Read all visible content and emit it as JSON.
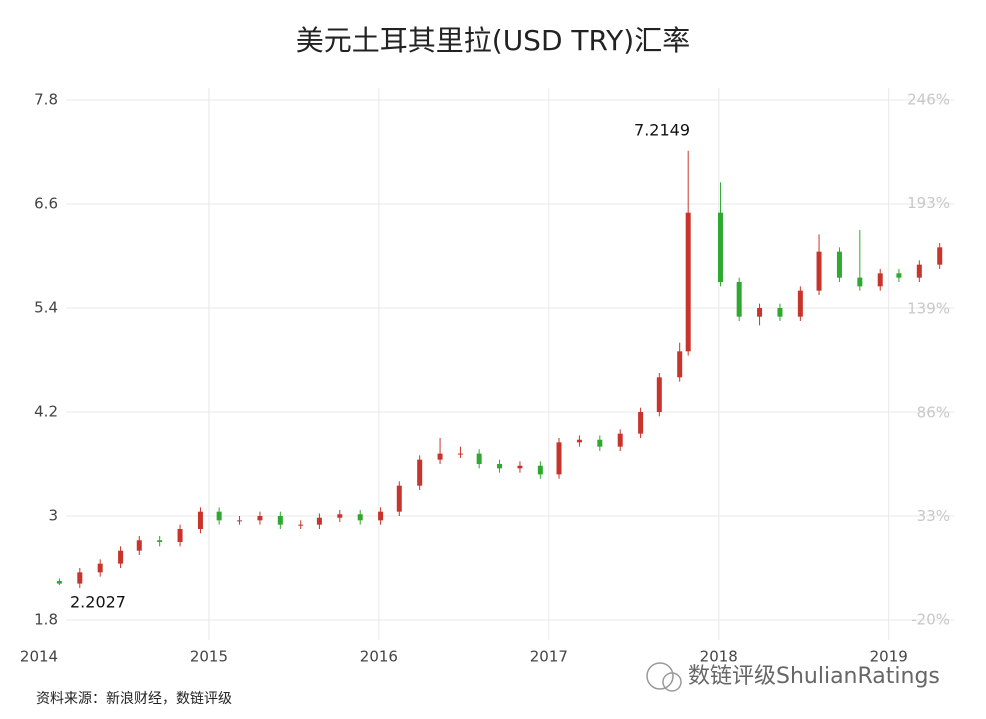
{
  "chart_data": {
    "type": "candlestick",
    "title": "美元土耳其里拉(USD TRY)汇率",
    "source": "资料来源：新浪财经，数链评级",
    "watermark": "数链评级ShulianRatings",
    "annotations": [
      "7.2149",
      "2.2027"
    ],
    "up_color": "#c8342c",
    "down_color": "#2fa82f",
    "x": [
      2014.12,
      2014.24,
      2014.36,
      2014.48,
      2014.59,
      2014.71,
      2014.83,
      2014.95,
      2015.06,
      2015.18,
      2015.3,
      2015.42,
      2015.54,
      2015.65,
      2015.77,
      2015.89,
      2016.01,
      2016.12,
      2016.24,
      2016.36,
      2016.48,
      2016.59,
      2016.71,
      2016.83,
      2016.95,
      2017.06,
      2017.18,
      2017.3,
      2017.42,
      2017.54,
      2017.65,
      2017.77,
      2017.82,
      2018.01,
      2018.12,
      2018.24,
      2018.36,
      2018.48,
      2018.59,
      2018.71,
      2018.83,
      2018.95,
      2019.06,
      2019.18,
      2019.3
    ],
    "open": [
      2.25,
      2.22,
      2.35,
      2.45,
      2.6,
      2.72,
      2.7,
      2.85,
      3.05,
      2.95,
      2.95,
      3.0,
      2.9,
      2.9,
      2.98,
      3.02,
      2.95,
      3.05,
      3.35,
      3.65,
      3.72,
      3.72,
      3.6,
      3.55,
      3.58,
      3.48,
      3.85,
      3.88,
      3.8,
      3.95,
      4.2,
      4.6,
      4.9,
      6.5,
      5.7,
      5.3,
      5.4,
      5.3,
      5.6,
      6.05,
      5.75,
      5.65,
      5.8,
      5.75,
      5.9
    ],
    "high": [
      2.28,
      2.4,
      2.5,
      2.65,
      2.77,
      2.77,
      2.9,
      3.1,
      3.1,
      3.0,
      3.05,
      3.05,
      2.95,
      3.03,
      3.07,
      3.07,
      3.1,
      3.4,
      3.7,
      3.9,
      3.8,
      3.77,
      3.65,
      3.63,
      3.63,
      3.9,
      3.93,
      3.93,
      4.0,
      4.25,
      4.65,
      5.0,
      7.2149,
      6.85,
      5.75,
      5.45,
      5.45,
      5.65,
      6.25,
      6.1,
      6.3,
      5.85,
      5.85,
      5.95,
      6.15
    ],
    "low": [
      2.2027,
      2.17,
      2.3,
      2.4,
      2.55,
      2.65,
      2.65,
      2.8,
      2.9,
      2.9,
      2.9,
      2.85,
      2.85,
      2.85,
      2.93,
      2.9,
      2.9,
      3.0,
      3.3,
      3.6,
      3.67,
      3.55,
      3.5,
      3.5,
      3.43,
      3.43,
      3.8,
      3.75,
      3.75,
      3.9,
      4.15,
      4.55,
      4.85,
      5.65,
      5.25,
      5.2,
      5.25,
      5.25,
      5.55,
      5.7,
      5.6,
      5.6,
      5.7,
      5.7,
      5.85
    ],
    "close": [
      2.22,
      2.35,
      2.45,
      2.6,
      2.72,
      2.7,
      2.85,
      3.05,
      2.95,
      2.95,
      3.0,
      2.9,
      2.9,
      2.98,
      3.02,
      2.95,
      3.05,
      3.35,
      3.65,
      3.72,
      3.72,
      3.6,
      3.55,
      3.58,
      3.48,
      3.85,
      3.88,
      3.8,
      3.95,
      4.2,
      4.6,
      4.9,
      6.5,
      5.7,
      5.3,
      5.4,
      5.3,
      5.6,
      6.05,
      5.75,
      5.65,
      5.8,
      5.75,
      5.9,
      6.1
    ],
    "xlim": [
      2014,
      2019.39
    ],
    "xticks": [
      2014,
      2015,
      2016,
      2017,
      2018,
      2019
    ],
    "ylim": [
      1.8,
      7.8
    ],
    "yticks": [
      1.8,
      3,
      4.2,
      5.4,
      6.6,
      7.8
    ],
    "y2lim": [
      -20,
      246
    ],
    "y2ticks": [
      {
        "value": -20,
        "label": "-20%"
      },
      {
        "value": 33,
        "label": "33%"
      },
      {
        "value": 86,
        "label": "86%"
      },
      {
        "value": 139,
        "label": "139%"
      },
      {
        "value": 193,
        "label": "193%"
      },
      {
        "value": 246,
        "label": "246%"
      }
    ],
    "grid": true
  }
}
